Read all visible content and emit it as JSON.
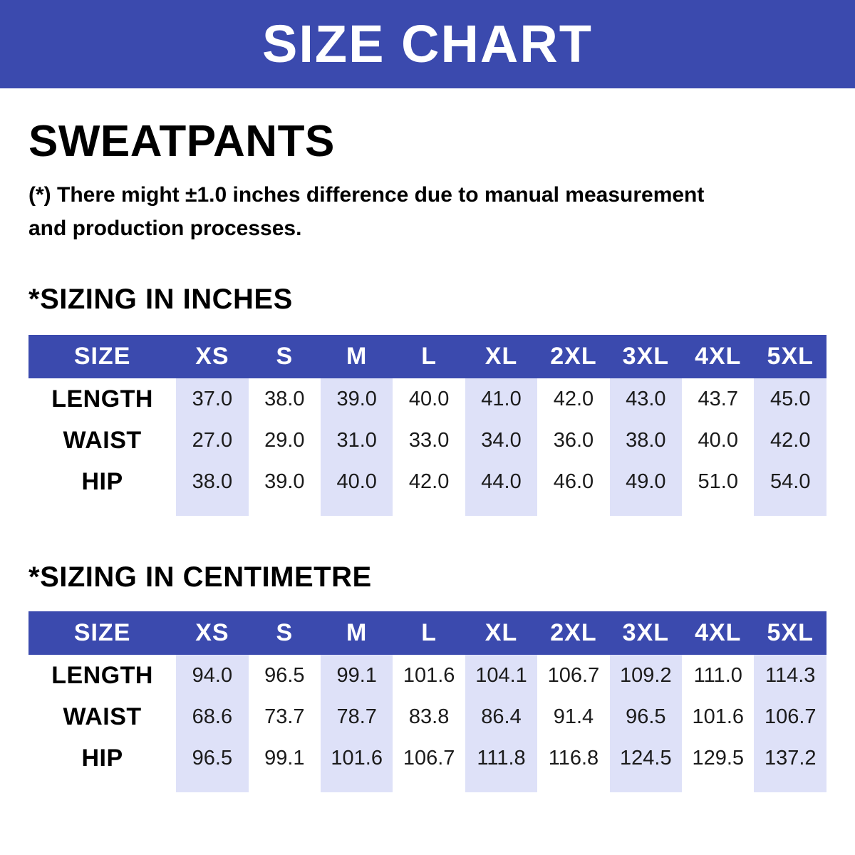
{
  "banner": {
    "title": "SIZE CHART"
  },
  "product": {
    "name": "SWEATPANTS"
  },
  "disclaimer": {
    "line1": "(*) There might ±1.0 inches difference due to manual measurement",
    "line2": "and production processes."
  },
  "colors": {
    "primary_blue": "#3B4AAE",
    "stripe_lavender": "#DEE1F8",
    "banner_text": "#FFFFFF",
    "body_text": "#000000"
  },
  "tables": [
    {
      "heading": "*SIZING IN INCHES",
      "unit": "inches",
      "columns": [
        "SIZE",
        "XS",
        "S",
        "M",
        "L",
        "XL",
        "2XL",
        "3XL",
        "4XL",
        "5XL"
      ],
      "rows": [
        {
          "label": "LENGTH",
          "values": [
            "37.0",
            "38.0",
            "39.0",
            "40.0",
            "41.0",
            "42.0",
            "43.0",
            "43.7",
            "45.0"
          ]
        },
        {
          "label": "WAIST",
          "values": [
            "27.0",
            "29.0",
            "31.0",
            "33.0",
            "34.0",
            "36.0",
            "38.0",
            "40.0",
            "42.0"
          ]
        },
        {
          "label": "HIP",
          "values": [
            "38.0",
            "39.0",
            "40.0",
            "42.0",
            "44.0",
            "46.0",
            "49.0",
            "51.0",
            "54.0"
          ]
        }
      ]
    },
    {
      "heading": "*SIZING IN CENTIMETRE",
      "unit": "centimetre",
      "columns": [
        "SIZE",
        "XS",
        "S",
        "M",
        "L",
        "XL",
        "2XL",
        "3XL",
        "4XL",
        "5XL"
      ],
      "rows": [
        {
          "label": "LENGTH",
          "values": [
            "94.0",
            "96.5",
            "99.1",
            "101.6",
            "104.1",
            "106.7",
            "109.2",
            "111.0",
            "114.3"
          ]
        },
        {
          "label": "WAIST",
          "values": [
            "68.6",
            "73.7",
            "78.7",
            "83.8",
            "86.4",
            "91.4",
            "96.5",
            "101.6",
            "106.7"
          ]
        },
        {
          "label": "HIP",
          "values": [
            "96.5",
            "99.1",
            "101.6",
            "106.7",
            "111.8",
            "116.8",
            "124.5",
            "129.5",
            "137.2"
          ]
        }
      ]
    }
  ]
}
